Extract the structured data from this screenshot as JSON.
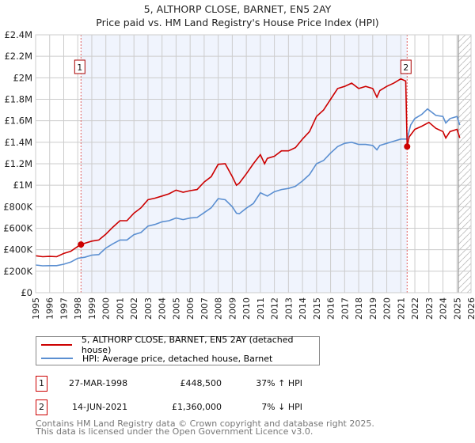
{
  "title": "5, ALTHORP CLOSE, BARNET, EN5 2AY",
  "subtitle": "Price paid vs. HM Land Registry's House Price Index (HPI)",
  "chart_data": {
    "type": "line",
    "xlim": [
      1995,
      2026
    ],
    "ylim": [
      0,
      2400000
    ],
    "x_ticks": [
      "1995",
      "1996",
      "1997",
      "1998",
      "1999",
      "2000",
      "2001",
      "2002",
      "2003",
      "2004",
      "2005",
      "2006",
      "2007",
      "2008",
      "2009",
      "2010",
      "2011",
      "2012",
      "2013",
      "2014",
      "2015",
      "2016",
      "2017",
      "2018",
      "2019",
      "2020",
      "2021",
      "2022",
      "2023",
      "2024",
      "2025",
      "2026"
    ],
    "y_ticks": [
      {
        "v": 0,
        "label": "£0"
      },
      {
        "v": 200000,
        "label": "£200K"
      },
      {
        "v": 400000,
        "label": "£400K"
      },
      {
        "v": 600000,
        "label": "£600K"
      },
      {
        "v": 800000,
        "label": "£800K"
      },
      {
        "v": 1000000,
        "label": "£1M"
      },
      {
        "v": 1200000,
        "label": "£1.2M"
      },
      {
        "v": 1400000,
        "label": "£1.4M"
      },
      {
        "v": 1600000,
        "label": "£1.6M"
      },
      {
        "v": 1800000,
        "label": "£1.8M"
      },
      {
        "v": 2000000,
        "label": "£2M"
      },
      {
        "v": 2200000,
        "label": "£2.2M"
      },
      {
        "v": 2400000,
        "label": "£2.4M"
      }
    ],
    "grid": true,
    "shaded_range": [
      1998.23,
      2021.45
    ],
    "forecast_hatch_from": 2025.1,
    "series": [
      {
        "name": "5, ALTHORP CLOSE, BARNET, EN5 2AY (detached house)",
        "color": "#cc0000",
        "x": [
          1995,
          1995.5,
          1996,
          1996.5,
          1997,
          1997.5,
          1998,
          1998.23,
          1998.5,
          1999,
          1999.5,
          2000,
          2000.5,
          2001,
          2001.5,
          2002,
          2002.5,
          2003,
          2003.5,
          2004,
          2004.5,
          2005,
          2005.5,
          2006,
          2006.5,
          2007,
          2007.5,
          2008,
          2008.5,
          2009,
          2009.3,
          2009.5,
          2010,
          2010.5,
          2011,
          2011.3,
          2011.5,
          2012,
          2012.5,
          2013,
          2013.5,
          2014,
          2014.5,
          2015,
          2015.5,
          2016,
          2016.5,
          2017,
          2017.5,
          2018,
          2018.5,
          2019,
          2019.3,
          2019.5,
          2020,
          2020.5,
          2021,
          2021.35,
          2021.45,
          2021.6,
          2022,
          2022.5,
          2023,
          2023.5,
          2024,
          2024.2,
          2024.5,
          2025,
          2025.2
        ],
        "y": [
          344000,
          335000,
          338000,
          335000,
          365000,
          385000,
          430000,
          448500,
          460000,
          480000,
          490000,
          545000,
          610000,
          670000,
          670000,
          740000,
          790000,
          865000,
          880000,
          900000,
          920000,
          955000,
          935000,
          950000,
          960000,
          1030000,
          1080000,
          1195000,
          1200000,
          1080000,
          1000000,
          1020000,
          1106000,
          1200000,
          1285000,
          1200000,
          1250000,
          1270000,
          1320000,
          1320000,
          1350000,
          1430000,
          1500000,
          1640000,
          1700000,
          1800000,
          1900000,
          1920000,
          1950000,
          1900000,
          1920000,
          1900000,
          1820000,
          1880000,
          1920000,
          1950000,
          1990000,
          1970000,
          1360000,
          1450000,
          1520000,
          1550000,
          1585000,
          1530000,
          1500000,
          1440000,
          1500000,
          1520000,
          1440000
        ]
      },
      {
        "name": "HPI: Average price, detached house, Barnet",
        "color": "#5b8fd1",
        "x": [
          1995,
          1995.5,
          1996,
          1996.5,
          1997,
          1997.5,
          1998,
          1998.5,
          1999,
          1999.5,
          2000,
          2000.5,
          2001,
          2001.5,
          2002,
          2002.5,
          2003,
          2003.5,
          2004,
          2004.5,
          2005,
          2005.5,
          2006,
          2006.5,
          2007,
          2007.5,
          2008,
          2008.5,
          2009,
          2009.3,
          2009.5,
          2010,
          2010.5,
          2011,
          2011.5,
          2012,
          2012.5,
          2013,
          2013.5,
          2014,
          2014.5,
          2015,
          2015.5,
          2016,
          2016.5,
          2017,
          2017.5,
          2018,
          2018.5,
          2019,
          2019.3,
          2019.5,
          2020,
          2020.5,
          2021,
          2021.45,
          2021.7,
          2022,
          2022.5,
          2022.9,
          2023.5,
          2024,
          2024.2,
          2024.5,
          2025,
          2025.2
        ],
        "y": [
          258000,
          250000,
          252000,
          252000,
          265000,
          285000,
          320000,
          330000,
          350000,
          355000,
          415000,
          455000,
          490000,
          490000,
          540000,
          560000,
          620000,
          635000,
          660000,
          670000,
          695000,
          680000,
          695000,
          700000,
          745000,
          790000,
          875000,
          865000,
          800000,
          740000,
          735000,
          786000,
          830000,
          930000,
          900000,
          940000,
          960000,
          970000,
          990000,
          1040000,
          1100000,
          1200000,
          1230000,
          1300000,
          1360000,
          1390000,
          1400000,
          1380000,
          1380000,
          1370000,
          1330000,
          1370000,
          1390000,
          1410000,
          1430000,
          1430000,
          1560000,
          1620000,
          1660000,
          1710000,
          1650000,
          1640000,
          1580000,
          1620000,
          1640000,
          1560000
        ]
      }
    ],
    "markers": [
      {
        "label": "1",
        "x": 1998.23,
        "y": 448500
      },
      {
        "label": "2",
        "x": 2021.45,
        "y": 1360000
      }
    ]
  },
  "legend": {
    "items": [
      "5, ALTHORP CLOSE, BARNET, EN5 2AY (detached house)",
      "HPI: Average price, detached house, Barnet"
    ],
    "colors": [
      "#cc0000",
      "#5b8fd1"
    ]
  },
  "transactions": [
    {
      "num": "1",
      "date": "27-MAR-1998",
      "price": "£448,500",
      "hpi": "37% ↑ HPI"
    },
    {
      "num": "2",
      "date": "14-JUN-2021",
      "price": "£1,360,000",
      "hpi": "7% ↓ HPI"
    }
  ],
  "footer": {
    "line1": "Contains HM Land Registry data © Crown copyright and database right 2025.",
    "line2": "This data is licensed under the Open Government Licence v3.0."
  }
}
